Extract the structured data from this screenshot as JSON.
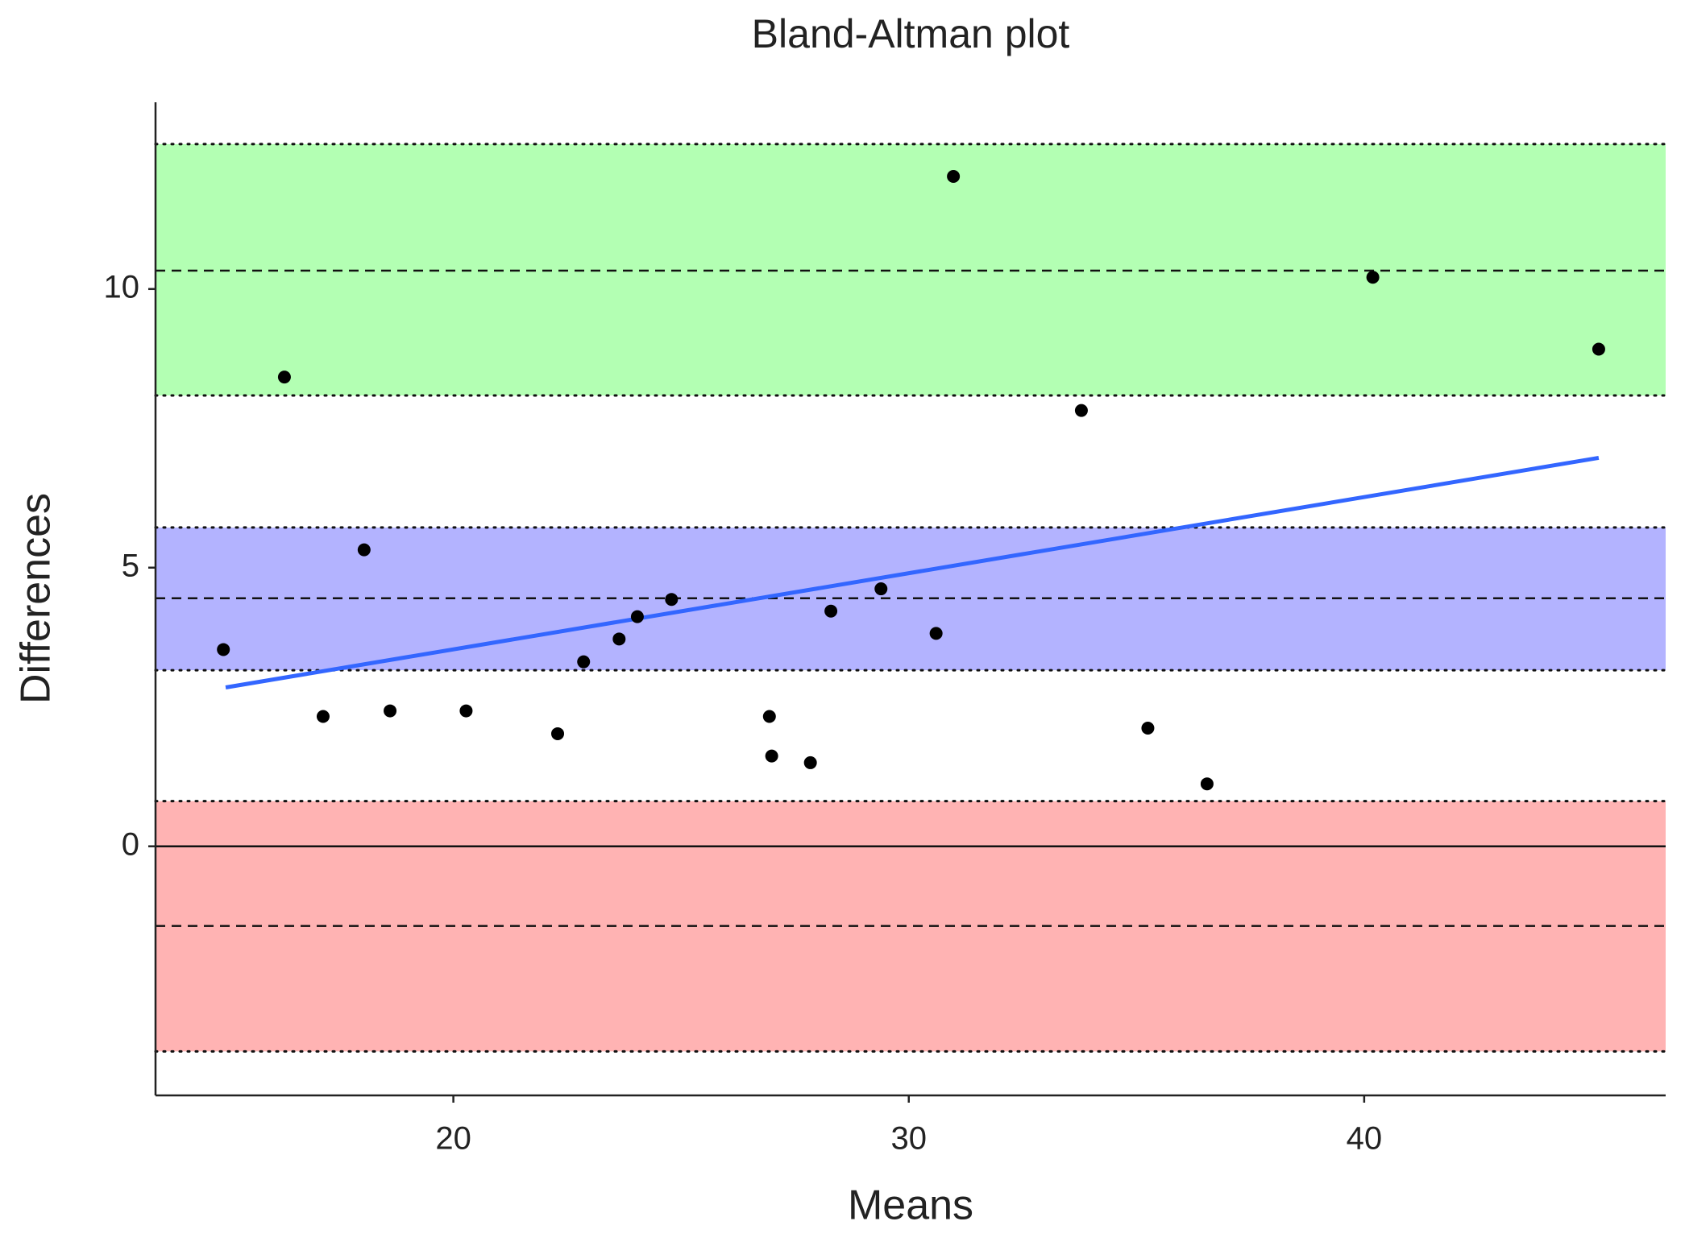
{
  "chart_data": {
    "type": "scatter",
    "title": "Bland-Altman plot",
    "xlabel": "Means",
    "ylabel": "Differences",
    "x": [
      14.95,
      16.29,
      17.14,
      18.04,
      18.61,
      20.28,
      22.29,
      22.86,
      23.64,
      24.04,
      24.79,
      26.94,
      26.99,
      27.84,
      28.29,
      29.39,
      30.6,
      30.98,
      33.79,
      35.25,
      36.55,
      40.19,
      45.15
    ],
    "values": [
      3.53,
      8.42,
      2.33,
      5.32,
      2.43,
      2.43,
      2.02,
      3.31,
      3.72,
      4.12,
      4.43,
      2.33,
      1.62,
      1.5,
      4.22,
      4.62,
      3.82,
      12.02,
      7.82,
      2.12,
      1.12,
      10.21,
      8.92
    ],
    "color": "#000000",
    "xlim": [
      13.46,
      46.62
    ],
    "ylim": [
      -4.47,
      13.35
    ],
    "xticks": [
      20,
      30,
      40
    ],
    "yticks": [
      0,
      5,
      10
    ],
    "bands": [
      {
        "lower": 8.09,
        "upper": 12.6,
        "mean": 10.33,
        "color": "#b3ffb3"
      },
      {
        "lower": 3.16,
        "upper": 5.72,
        "mean": 4.45,
        "color": "#b3b3ff"
      },
      {
        "lower": -3.68,
        "upper": 0.81,
        "mean": -1.43,
        "color": "#ffb3b3"
      }
    ],
    "hline": 0,
    "regression": {
      "x": [
        15.0,
        45.15
      ],
      "y": [
        2.85,
        6.97
      ],
      "color": "#3366ff"
    }
  }
}
